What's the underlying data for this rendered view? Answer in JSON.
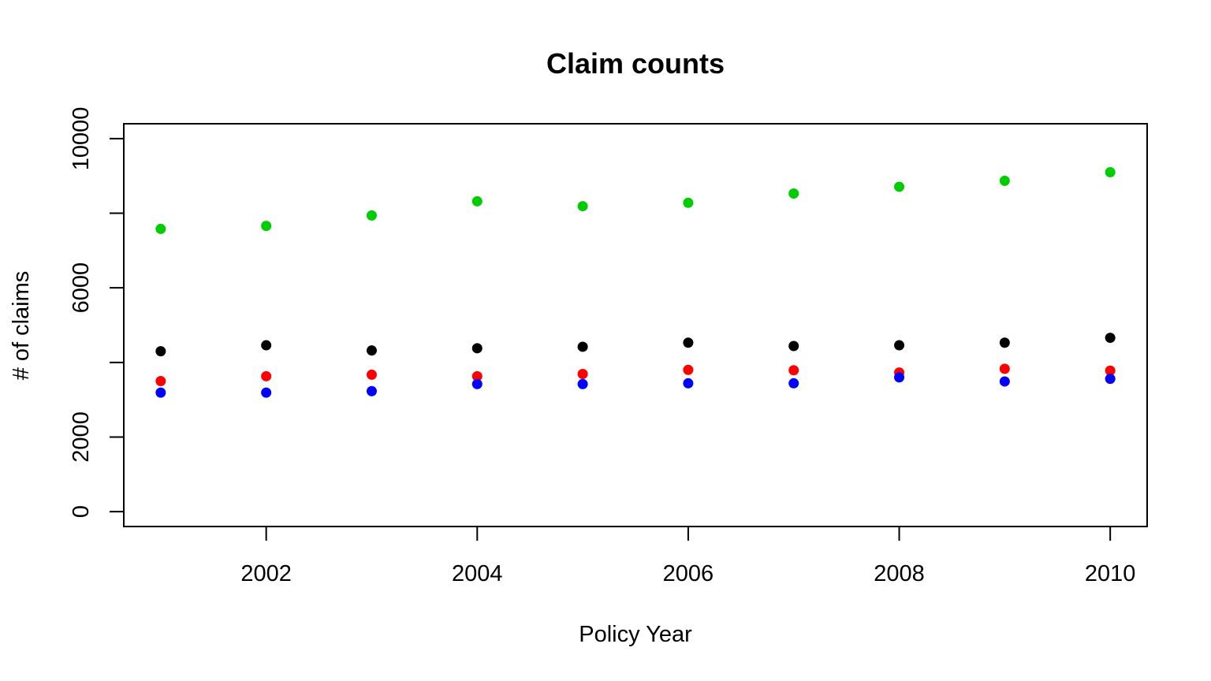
{
  "chart_data": {
    "type": "scatter",
    "title": "Claim counts",
    "xlabel": "Policy Year",
    "ylabel": "# of claims",
    "xlim": [
      2000.65,
      2010.35
    ],
    "ylim": [
      -400,
      10400
    ],
    "x_ticks": [
      2002,
      2004,
      2006,
      2008,
      2010
    ],
    "x_tick_labels": [
      "2002",
      "2004",
      "2006",
      "2008",
      "2010"
    ],
    "y_ticks": [
      0,
      2000,
      4000,
      6000,
      8000,
      10000
    ],
    "y_tick_labels": [
      "0",
      "2000",
      "",
      "6000",
      "",
      "10000"
    ],
    "grid": false,
    "legend": "none",
    "x": [
      2001,
      2002,
      2003,
      2004,
      2005,
      2006,
      2007,
      2008,
      2009,
      2010
    ],
    "series": [
      {
        "color": "#00cd00",
        "values": [
          7580,
          7660,
          7940,
          8320,
          8190,
          8280,
          8530,
          8710,
          8870,
          9100
        ]
      },
      {
        "color": "#000000",
        "values": [
          4300,
          4460,
          4320,
          4380,
          4420,
          4530,
          4440,
          4460,
          4530,
          4660
        ]
      },
      {
        "color": "#ff0000",
        "values": [
          3500,
          3630,
          3670,
          3630,
          3690,
          3800,
          3790,
          3730,
          3830,
          3780
        ]
      },
      {
        "color": "#0000ff",
        "values": [
          3190,
          3190,
          3230,
          3420,
          3420,
          3440,
          3440,
          3600,
          3490,
          3560
        ]
      }
    ]
  }
}
